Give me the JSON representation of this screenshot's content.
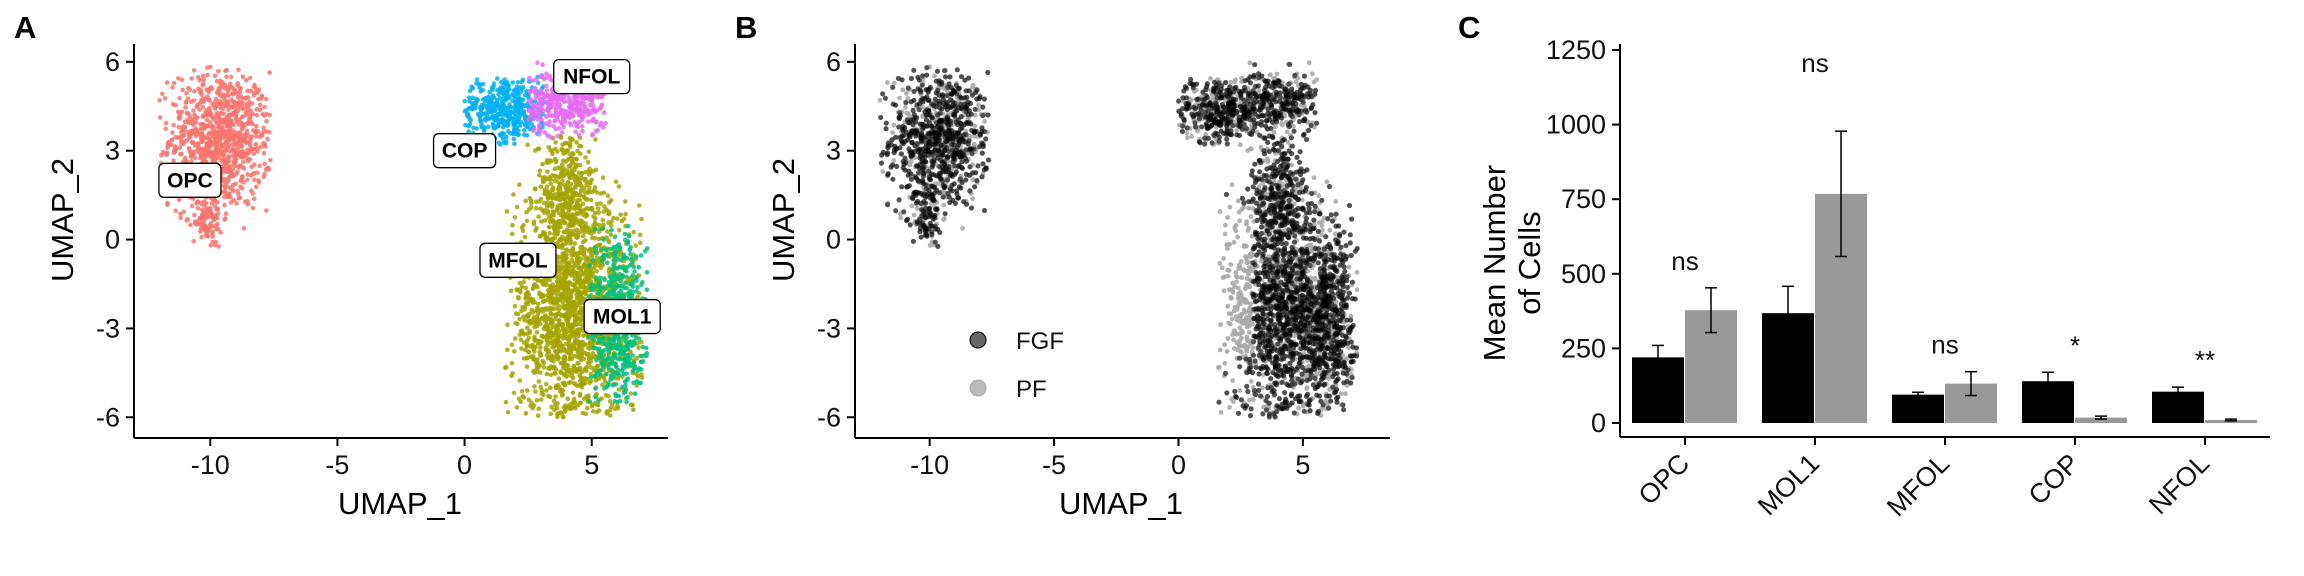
{
  "panels": {
    "a": "A",
    "b": "B",
    "c": "C"
  },
  "colors": {
    "OPC": "#F8766D",
    "COP": "#00B0F6",
    "NFOL": "#E76BF3",
    "MFOL": "#A3A500",
    "MOL1": "#00BF7D",
    "FGF": "#000000",
    "PF": "#999999"
  },
  "chart_data": [
    {
      "panel": "A",
      "type": "scatter",
      "xlabel": "UMAP_1",
      "ylabel": "UMAP_2",
      "xlim": [
        -13,
        8
      ],
      "ylim": [
        -6.7,
        6.4
      ],
      "xticks": [
        "-10",
        "-5",
        "0",
        "5"
      ],
      "yticks": [
        "-6",
        "-3",
        "0",
        "3",
        "6"
      ],
      "color_by": "cluster",
      "clusters": [
        {
          "name": "OPC",
          "label_x": -10.8,
          "label_y": 2.0
        },
        {
          "name": "COP",
          "label_x": 0.0,
          "label_y": 3.0
        },
        {
          "name": "NFOL",
          "label_x": 5.0,
          "label_y": 5.5
        },
        {
          "name": "MFOL",
          "label_x": 2.1,
          "label_y": -0.7
        },
        {
          "name": "MOL1",
          "label_x": 6.2,
          "label_y": -2.6
        }
      ]
    },
    {
      "panel": "B",
      "type": "scatter",
      "xlabel": "UMAP_1",
      "ylabel": "UMAP_2",
      "xlim": [
        -13,
        8.5
      ],
      "ylim": [
        -6.7,
        6.4
      ],
      "xticks": [
        "-10",
        "-5",
        "0",
        "5"
      ],
      "yticks": [
        "-6",
        "-3",
        "0",
        "3",
        "6"
      ],
      "color_by": "condition",
      "legend": [
        "FGF",
        "PF"
      ],
      "legend_position": "inside-bottom-left"
    },
    {
      "panel": "C",
      "type": "bar",
      "ylabel_lines": [
        "Mean Number",
        "of Cells"
      ],
      "categories": [
        "OPC",
        "MOL1",
        "MFOL",
        "COP",
        "NFOL"
      ],
      "ylim": [
        0,
        1250
      ],
      "yticks": [
        "0",
        "250",
        "500",
        "750",
        "1000",
        "1250"
      ],
      "series": [
        {
          "values": [
            220,
            368,
            95,
            140,
            105
          ],
          "errors": [
            40,
            90,
            8,
            30,
            15
          ]
        },
        {
          "values": [
            378,
            768,
            132,
            18,
            10
          ],
          "errors": [
            75,
            210,
            40,
            5,
            3
          ]
        }
      ],
      "significance": [
        "ns",
        "ns",
        "ns",
        "*",
        "**"
      ]
    }
  ]
}
